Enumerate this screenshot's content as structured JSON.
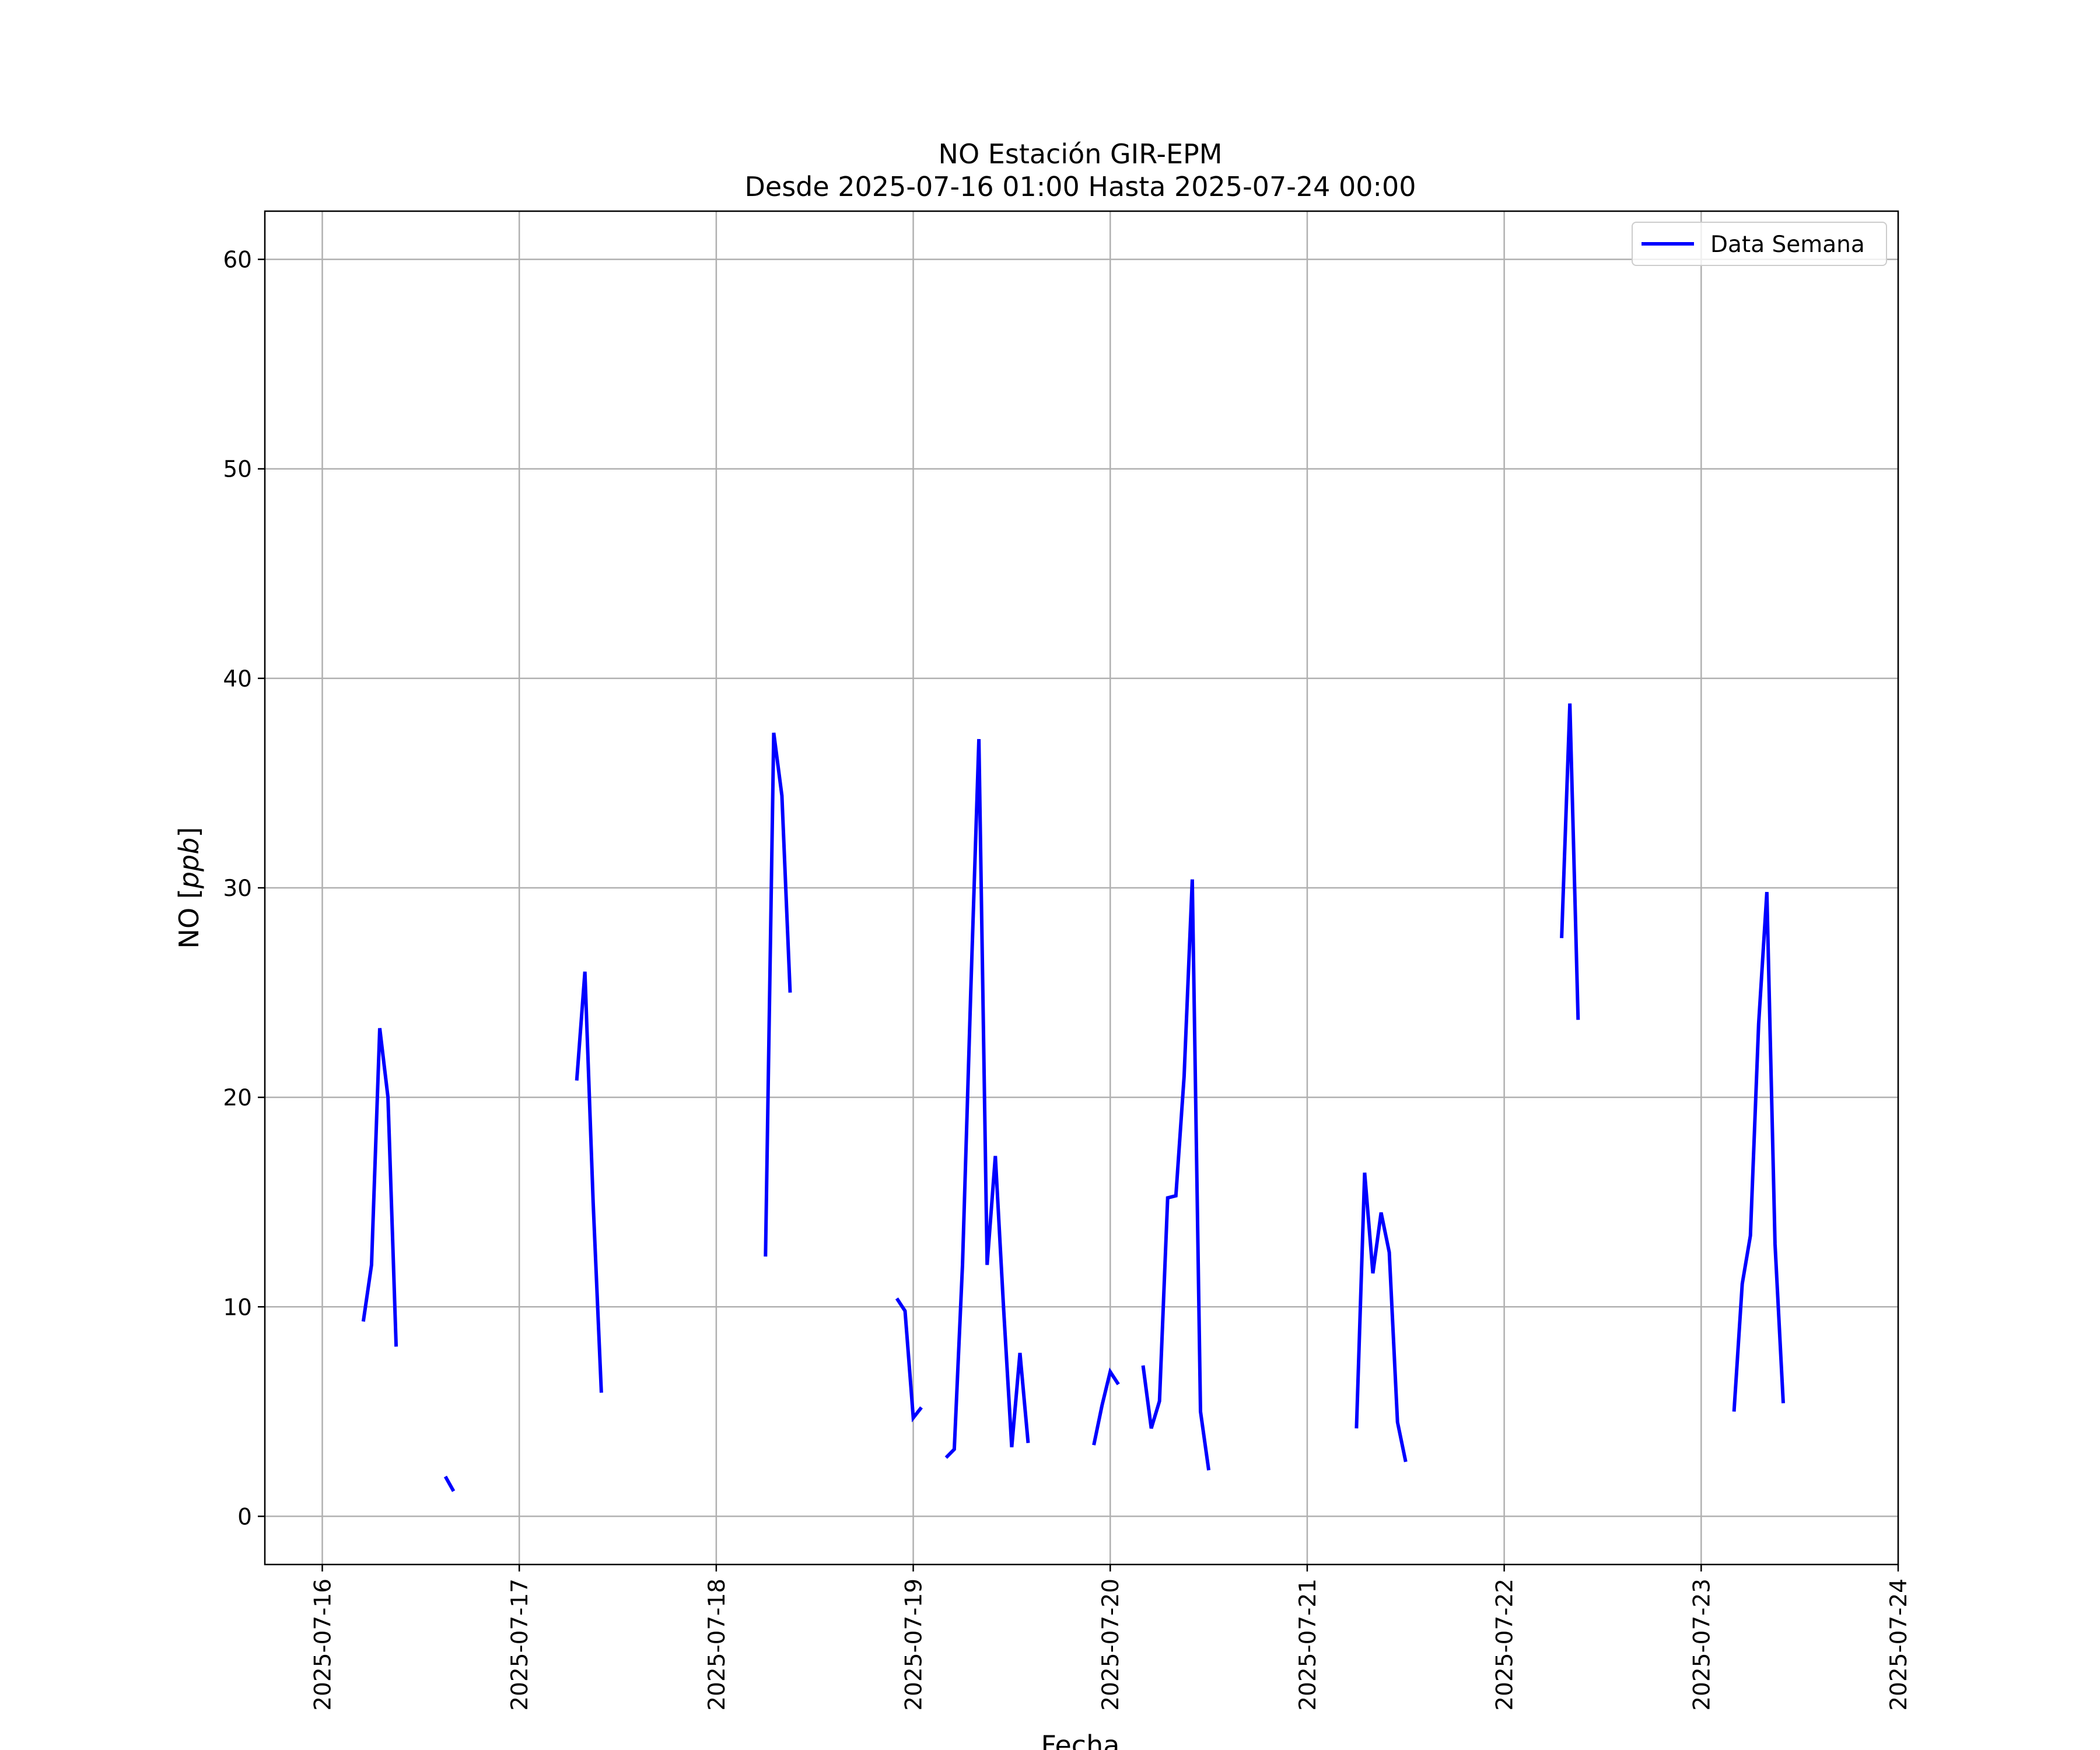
{
  "chart_data": {
    "type": "line",
    "title": "NO Estación GIR-EPM",
    "subtitle": "Desde 2025-07-16 01:00 Hasta 2025-07-24 00:00",
    "xlabel": "Fecha",
    "ylabel": "NO [ppb]",
    "ylabel_unit": "ppb",
    "ylim": [
      -2.3,
      62.3
    ],
    "xlim": [
      "2025-07-15 17:00",
      "2025-07-24 00:00"
    ],
    "x_ticks": [
      "2025-07-16",
      "2025-07-17",
      "2025-07-18",
      "2025-07-19",
      "2025-07-20",
      "2025-07-21",
      "2025-07-22",
      "2025-07-23",
      "2025-07-24"
    ],
    "y_ticks": [
      0,
      10,
      20,
      30,
      40,
      50,
      60
    ],
    "grid": true,
    "legend_position": "top-right",
    "colors": {
      "series": "#0000ff",
      "grid": "#b0b0b0",
      "axes": "#000000"
    },
    "series": [
      {
        "name": "Data Semana",
        "color": "#0000ff",
        "segments": [
          [
            [
              "2025-07-16 05:00",
              9.3
            ],
            [
              "2025-07-16 06:00",
              12.0
            ],
            [
              "2025-07-16 07:00",
              23.3
            ],
            [
              "2025-07-16 08:00",
              20.0
            ],
            [
              "2025-07-16 09:00",
              8.1
            ]
          ],
          [
            [
              "2025-07-16 15:00",
              1.9
            ],
            [
              "2025-07-16 16:00",
              1.2
            ]
          ],
          [
            [
              "2025-07-17 07:00",
              20.8
            ],
            [
              "2025-07-17 08:00",
              26.0
            ],
            [
              "2025-07-17 09:00",
              15.0
            ],
            [
              "2025-07-17 10:00",
              5.9
            ]
          ],
          [
            [
              "2025-07-18 06:00",
              12.4
            ],
            [
              "2025-07-18 07:00",
              37.4
            ],
            [
              "2025-07-18 08:00",
              34.4
            ],
            [
              "2025-07-18 09:00",
              25.0
            ]
          ],
          [
            [
              "2025-07-18 22:00",
              10.4
            ],
            [
              "2025-07-18 23:00",
              9.8
            ],
            [
              "2025-07-19 00:00",
              4.7
            ],
            [
              "2025-07-19 01:00",
              5.2
            ]
          ],
          [
            [
              "2025-07-19 04:00",
              2.8
            ],
            [
              "2025-07-19 05:00",
              3.2
            ],
            [
              "2025-07-19 06:00",
              12.0
            ],
            [
              "2025-07-19 07:00",
              25.0
            ],
            [
              "2025-07-19 08:00",
              37.1
            ],
            [
              "2025-07-19 09:00",
              12.0
            ],
            [
              "2025-07-19 10:00",
              17.2
            ],
            [
              "2025-07-19 11:00",
              10.0
            ],
            [
              "2025-07-19 12:00",
              3.3
            ],
            [
              "2025-07-19 13:00",
              7.8
            ],
            [
              "2025-07-19 14:00",
              3.5
            ]
          ],
          [
            [
              "2025-07-19 22:00",
              3.4
            ],
            [
              "2025-07-19 23:00",
              5.3
            ],
            [
              "2025-07-20 00:00",
              6.9
            ],
            [
              "2025-07-20 01:00",
              6.3
            ]
          ],
          [
            [
              "2025-07-20 04:00",
              7.2
            ],
            [
              "2025-07-20 05:00",
              4.2
            ],
            [
              "2025-07-20 06:00",
              5.5
            ],
            [
              "2025-07-20 07:00",
              15.2
            ],
            [
              "2025-07-20 08:00",
              15.3
            ],
            [
              "2025-07-20 09:00",
              21.0
            ],
            [
              "2025-07-20 10:00",
              30.4
            ],
            [
              "2025-07-20 11:00",
              5.0
            ],
            [
              "2025-07-20 12:00",
              2.2
            ]
          ],
          [
            [
              "2025-07-21 06:00",
              4.2
            ],
            [
              "2025-07-21 07:00",
              16.4
            ],
            [
              "2025-07-21 08:00",
              11.6
            ],
            [
              "2025-07-21 09:00",
              14.5
            ],
            [
              "2025-07-21 10:00",
              12.6
            ],
            [
              "2025-07-21 11:00",
              4.5
            ],
            [
              "2025-07-21 12:00",
              2.6
            ]
          ],
          [
            [
              "2025-07-22 07:00",
              27.6
            ],
            [
              "2025-07-22 08:00",
              38.8
            ],
            [
              "2025-07-22 09:00",
              23.7
            ]
          ],
          [
            [
              "2025-07-23 04:00",
              5.0
            ],
            [
              "2025-07-23 05:00",
              11.1
            ],
            [
              "2025-07-23 06:00",
              13.4
            ],
            [
              "2025-07-23 07:00",
              23.5
            ],
            [
              "2025-07-23 08:00",
              29.8
            ],
            [
              "2025-07-23 09:00",
              13.0
            ],
            [
              "2025-07-23 10:00",
              5.4
            ]
          ]
        ]
      }
    ]
  }
}
